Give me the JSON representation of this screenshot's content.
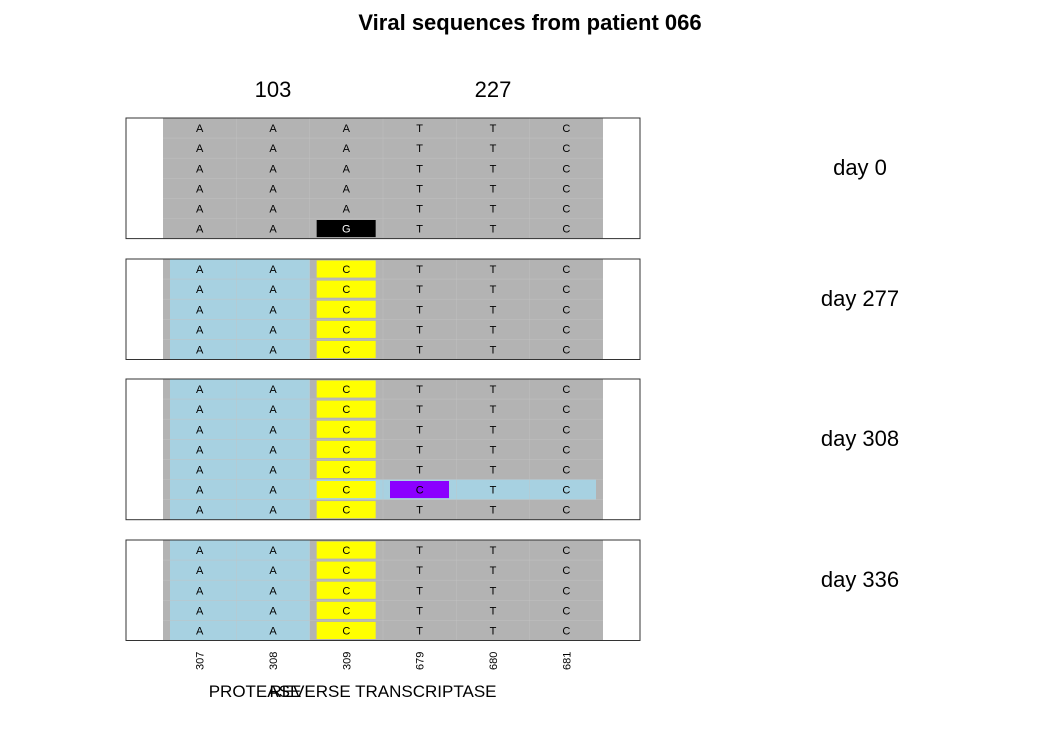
{
  "title": "Viral sequences from patient 066",
  "positions_of_interest": [
    "103",
    "227"
  ],
  "sites": [
    "307",
    "308",
    "309",
    "679",
    "680",
    "681"
  ],
  "regions": [
    "PROTEASE",
    "REVERSE TRANSCRIPTASE"
  ],
  "colors": {
    "panel_background": "#b3b3b3",
    "variant_row": "#a7d1e1",
    "mutation_c": "#ffff00",
    "mutation_g": "#000000",
    "mutation_purple": "#8b00ff",
    "panel_border": "#333333"
  },
  "panels": [
    {
      "label": "day 0",
      "rows": [
        {
          "bases": [
            "A",
            "A",
            "A",
            "T",
            "T",
            "C"
          ],
          "style": "gray",
          "marks": []
        },
        {
          "bases": [
            "A",
            "A",
            "A",
            "T",
            "T",
            "C"
          ],
          "style": "gray",
          "marks": []
        },
        {
          "bases": [
            "A",
            "A",
            "A",
            "T",
            "T",
            "C"
          ],
          "style": "gray",
          "marks": []
        },
        {
          "bases": [
            "A",
            "A",
            "A",
            "T",
            "T",
            "C"
          ],
          "style": "gray",
          "marks": []
        },
        {
          "bases": [
            "A",
            "A",
            "A",
            "T",
            "T",
            "C"
          ],
          "style": "gray",
          "marks": []
        },
        {
          "bases": [
            "A",
            "A",
            "G",
            "T",
            "T",
            "C"
          ],
          "style": "gray",
          "marks": [
            {
              "col": 2,
              "color": "#000000",
              "text_color": "#ffffff"
            }
          ]
        }
      ]
    },
    {
      "label": "day 277",
      "rows": [
        {
          "bases": [
            "A",
            "A",
            "C",
            "T",
            "T",
            "C"
          ],
          "style": "blue-left",
          "marks": [
            {
              "col": 2,
              "color": "#ffff00",
              "text_color": "#000000"
            }
          ]
        },
        {
          "bases": [
            "A",
            "A",
            "C",
            "T",
            "T",
            "C"
          ],
          "style": "blue-left",
          "marks": [
            {
              "col": 2,
              "color": "#ffff00",
              "text_color": "#000000"
            }
          ]
        },
        {
          "bases": [
            "A",
            "A",
            "C",
            "T",
            "T",
            "C"
          ],
          "style": "blue-left",
          "marks": [
            {
              "col": 2,
              "color": "#ffff00",
              "text_color": "#000000"
            }
          ]
        },
        {
          "bases": [
            "A",
            "A",
            "C",
            "T",
            "T",
            "C"
          ],
          "style": "blue-left",
          "marks": [
            {
              "col": 2,
              "color": "#ffff00",
              "text_color": "#000000"
            }
          ]
        },
        {
          "bases": [
            "A",
            "A",
            "C",
            "T",
            "T",
            "C"
          ],
          "style": "blue-left",
          "marks": [
            {
              "col": 2,
              "color": "#ffff00",
              "text_color": "#000000"
            }
          ]
        }
      ]
    },
    {
      "label": "day 308",
      "rows": [
        {
          "bases": [
            "A",
            "A",
            "C",
            "T",
            "T",
            "C"
          ],
          "style": "blue-left",
          "marks": [
            {
              "col": 2,
              "color": "#ffff00",
              "text_color": "#000000"
            }
          ]
        },
        {
          "bases": [
            "A",
            "A",
            "C",
            "T",
            "T",
            "C"
          ],
          "style": "blue-left",
          "marks": [
            {
              "col": 2,
              "color": "#ffff00",
              "text_color": "#000000"
            }
          ]
        },
        {
          "bases": [
            "A",
            "A",
            "C",
            "T",
            "T",
            "C"
          ],
          "style": "blue-left",
          "marks": [
            {
              "col": 2,
              "color": "#ffff00",
              "text_color": "#000000"
            }
          ]
        },
        {
          "bases": [
            "A",
            "A",
            "C",
            "T",
            "T",
            "C"
          ],
          "style": "blue-left",
          "marks": [
            {
              "col": 2,
              "color": "#ffff00",
              "text_color": "#000000"
            }
          ]
        },
        {
          "bases": [
            "A",
            "A",
            "C",
            "T",
            "T",
            "C"
          ],
          "style": "blue-left",
          "marks": [
            {
              "col": 2,
              "color": "#ffff00",
              "text_color": "#000000"
            }
          ]
        },
        {
          "bases": [
            "A",
            "A",
            "C",
            "C",
            "T",
            "C"
          ],
          "style": "blue-full",
          "marks": [
            {
              "col": 2,
              "color": "#ffff00",
              "text_color": "#000000"
            },
            {
              "col": 3,
              "color": "#8b00ff",
              "text_color": "#000000"
            }
          ]
        },
        {
          "bases": [
            "A",
            "A",
            "C",
            "T",
            "T",
            "C"
          ],
          "style": "blue-left",
          "marks": [
            {
              "col": 2,
              "color": "#ffff00",
              "text_color": "#000000"
            }
          ]
        }
      ]
    },
    {
      "label": "day 336",
      "rows": [
        {
          "bases": [
            "A",
            "A",
            "C",
            "T",
            "T",
            "C"
          ],
          "style": "blue-left",
          "marks": [
            {
              "col": 2,
              "color": "#ffff00",
              "text_color": "#000000"
            }
          ]
        },
        {
          "bases": [
            "A",
            "A",
            "C",
            "T",
            "T",
            "C"
          ],
          "style": "blue-left",
          "marks": [
            {
              "col": 2,
              "color": "#ffff00",
              "text_color": "#000000"
            }
          ]
        },
        {
          "bases": [
            "A",
            "A",
            "C",
            "T",
            "T",
            "C"
          ],
          "style": "blue-left",
          "marks": [
            {
              "col": 2,
              "color": "#ffff00",
              "text_color": "#000000"
            }
          ]
        },
        {
          "bases": [
            "A",
            "A",
            "C",
            "T",
            "T",
            "C"
          ],
          "style": "blue-left",
          "marks": [
            {
              "col": 2,
              "color": "#ffff00",
              "text_color": "#000000"
            }
          ]
        },
        {
          "bases": [
            "A",
            "A",
            "C",
            "T",
            "T",
            "C"
          ],
          "style": "blue-left",
          "marks": [
            {
              "col": 2,
              "color": "#ffff00",
              "text_color": "#000000"
            }
          ]
        }
      ]
    }
  ]
}
